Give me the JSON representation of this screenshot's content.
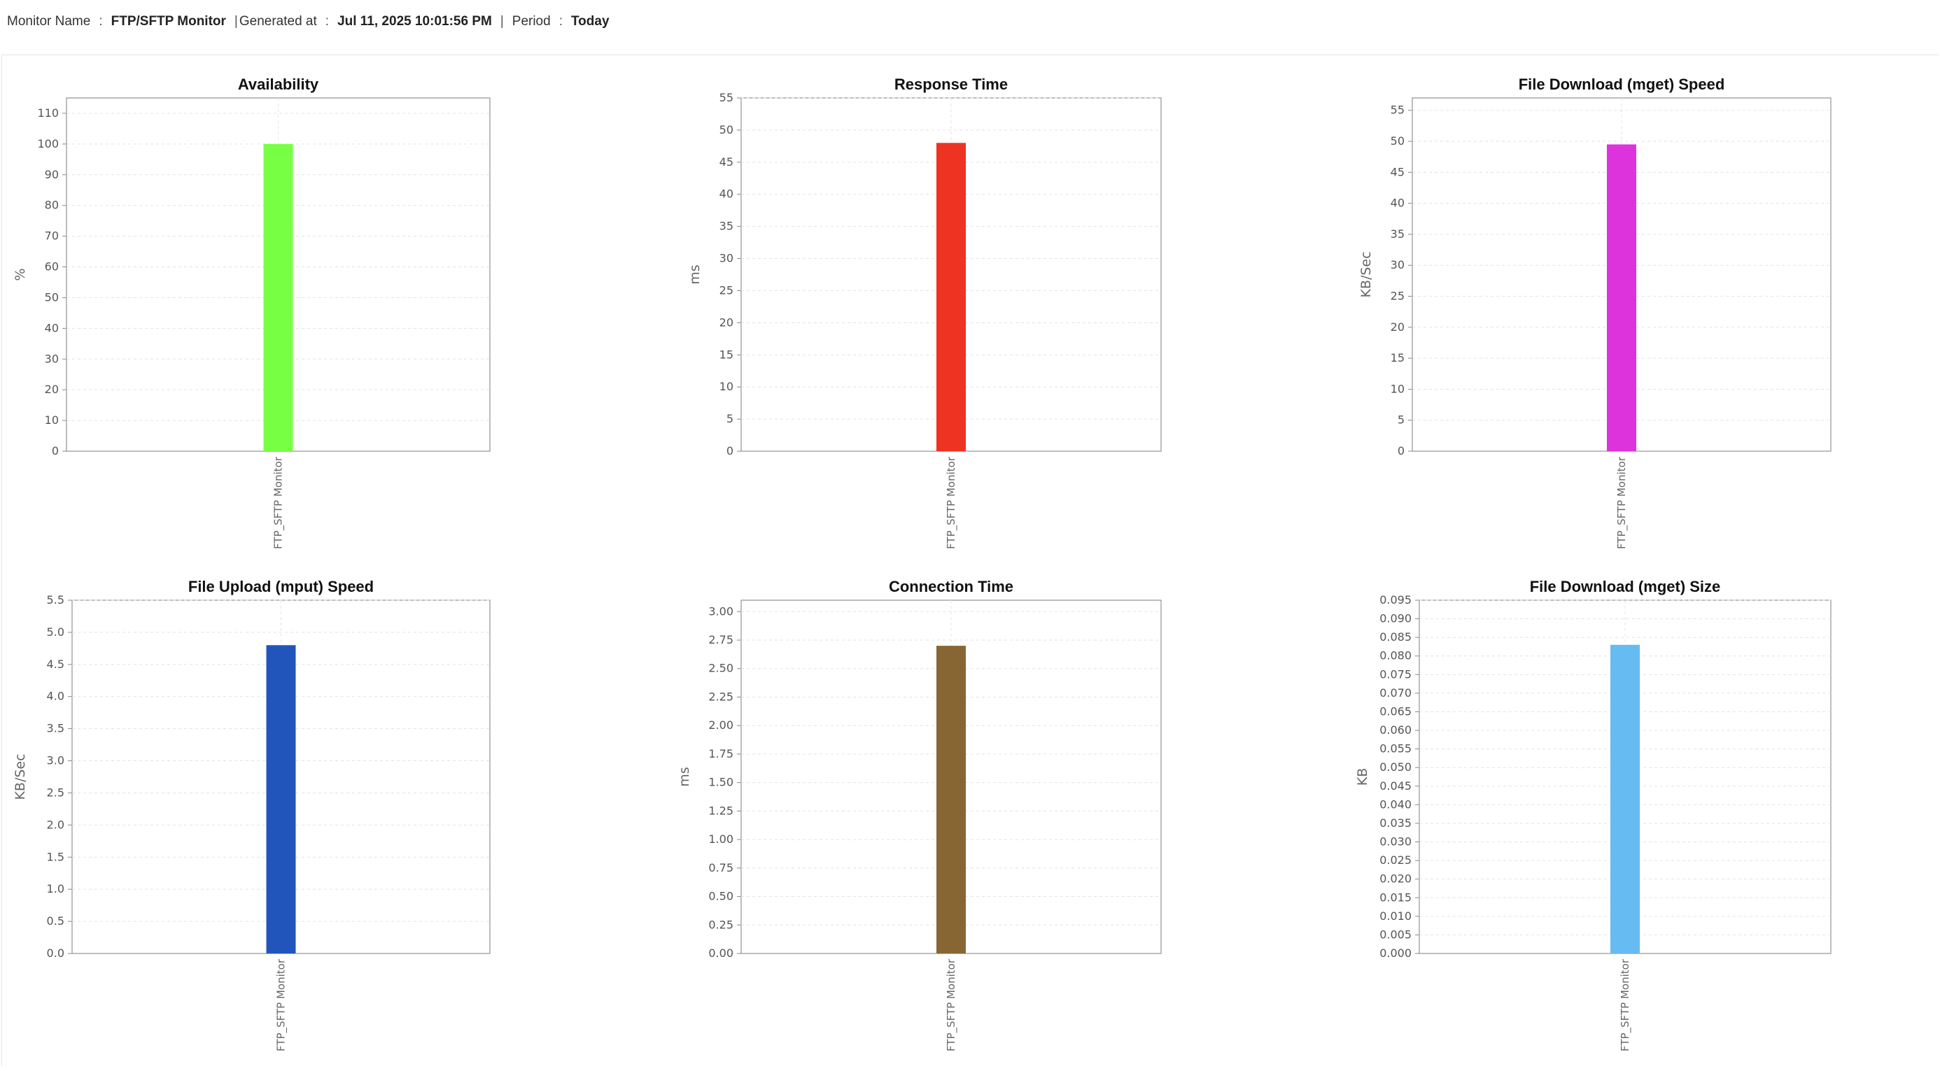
{
  "header": {
    "monitor_name_label": "Monitor Name",
    "monitor_name_sep": ":",
    "monitor_name": "FTP/SFTP Monitor",
    "generated_label": "Generated at",
    "generated_sep": ":",
    "generated_at": "Jul 11, 2025 10:01:56 PM",
    "period_label": "Period",
    "period_sep": ":",
    "period": "Today",
    "divider": "|"
  },
  "chart_data": [
    {
      "type": "bar",
      "title": "Availability",
      "ylabel": "%",
      "xlabel": "",
      "categories": [
        "FTP_SFTP Monitor"
      ],
      "values": [
        100
      ],
      "ylim": [
        0,
        115
      ],
      "yticks": [
        0,
        10,
        20,
        30,
        40,
        50,
        60,
        70,
        80,
        90,
        100,
        110
      ],
      "tick_decimals": 0,
      "color": "#77ff44",
      "grid": true
    },
    {
      "type": "bar",
      "title": "Response Time",
      "ylabel": "ms",
      "xlabel": "",
      "categories": [
        "FTP_SFTP Monitor"
      ],
      "values": [
        48
      ],
      "ylim": [
        0,
        55
      ],
      "yticks": [
        0,
        5,
        10,
        15,
        20,
        25,
        30,
        35,
        40,
        45,
        50,
        55
      ],
      "tick_decimals": 0,
      "color": "#ee3322",
      "grid": true
    },
    {
      "type": "bar",
      "title": "File Download (mget) Speed",
      "ylabel": "KB/Sec",
      "xlabel": "",
      "categories": [
        "FTP_SFTP Monitor"
      ],
      "values": [
        49.5
      ],
      "ylim": [
        0,
        57
      ],
      "yticks": [
        0,
        5,
        10,
        15,
        20,
        25,
        30,
        35,
        40,
        45,
        50,
        55
      ],
      "tick_decimals": 0,
      "color": "#dd33dd",
      "grid": true
    },
    {
      "type": "bar",
      "title": "File Upload (mput) Speed",
      "ylabel": "KB/Sec",
      "xlabel": "",
      "categories": [
        "FTP_SFTP Monitor"
      ],
      "values": [
        4.8
      ],
      "ylim": [
        0,
        5.5
      ],
      "yticks": [
        0,
        0.5,
        1,
        1.5,
        2,
        2.5,
        3,
        3.5,
        4,
        4.5,
        5,
        5.5
      ],
      "tick_decimals": 1,
      "color": "#2255bb",
      "grid": true
    },
    {
      "type": "bar",
      "title": "Connection Time",
      "ylabel": "ms",
      "xlabel": "",
      "categories": [
        "FTP_SFTP Monitor"
      ],
      "values": [
        2.7
      ],
      "ylim": [
        0,
        3.1
      ],
      "yticks": [
        0,
        0.25,
        0.5,
        0.75,
        1,
        1.25,
        1.5,
        1.75,
        2,
        2.25,
        2.5,
        2.75,
        3
      ],
      "tick_decimals": 2,
      "color": "#886633",
      "grid": true
    },
    {
      "type": "bar",
      "title": "File Download (mget) Size",
      "ylabel": "KB",
      "xlabel": "",
      "categories": [
        "FTP_SFTP Monitor"
      ],
      "values": [
        0.083
      ],
      "ylim": [
        0,
        0.095
      ],
      "yticks": [
        0,
        0.005,
        0.01,
        0.015,
        0.02,
        0.025,
        0.03,
        0.035,
        0.04,
        0.045,
        0.05,
        0.055,
        0.06,
        0.065,
        0.07,
        0.075,
        0.08,
        0.085,
        0.09,
        0.095
      ],
      "tick_decimals": 3,
      "color": "#66bbf2",
      "grid": true
    }
  ]
}
